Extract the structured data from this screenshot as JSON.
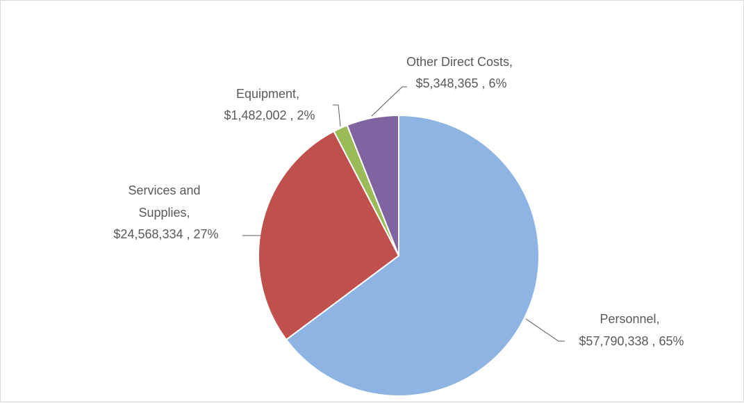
{
  "chart_data": {
    "type": "pie",
    "categories": [
      "Personnel",
      "Services and Supplies",
      "Equipment",
      "Other Direct Costs"
    ],
    "values": [
      57790338,
      24568334,
      1482002,
      5348365
    ],
    "percent_labels": [
      "65%",
      "27%",
      "2%",
      "6%"
    ],
    "value_labels": [
      "$57,790,338",
      "$24,568,334",
      "$1,482,002",
      "$5,348,365"
    ],
    "data_labels": [
      {
        "lines": [
          "Personnel,",
          "$57,790,338 , 65%"
        ]
      },
      {
        "lines": [
          "Services and",
          "Supplies,",
          "$24,568,334 , 27%"
        ]
      },
      {
        "lines": [
          "Equipment,",
          "$1,482,002 , 2%"
        ]
      },
      {
        "lines": [
          "Other Direct Costs,",
          "$5,348,365 , 6%"
        ]
      }
    ],
    "colors": [
      "#8EB4E3",
      "#C0504D",
      "#9BBB59",
      "#8064A2"
    ],
    "start_angle": "top",
    "direction": "clockwise",
    "title": "",
    "legend": "none"
  }
}
